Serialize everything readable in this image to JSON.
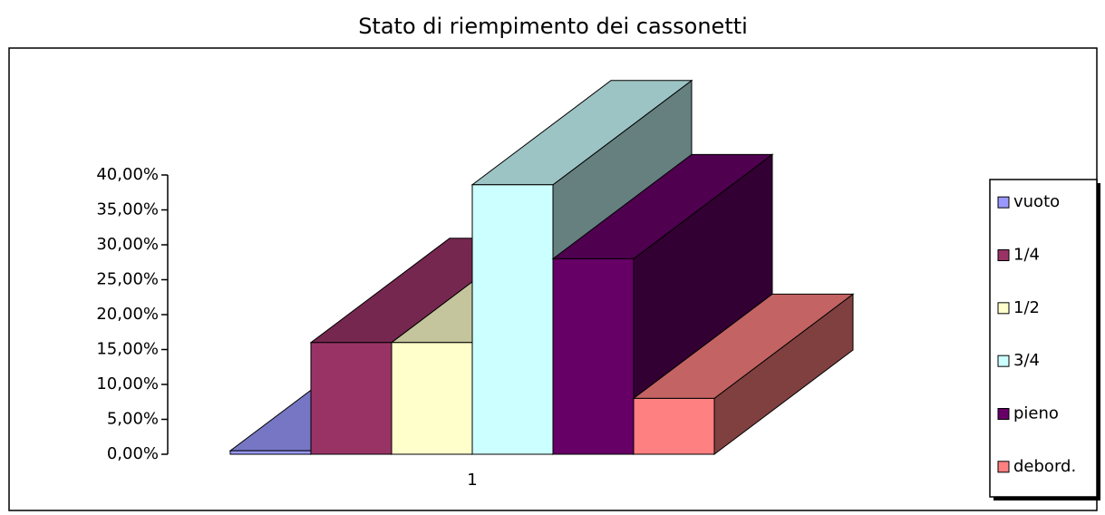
{
  "chart_data": {
    "type": "bar3d",
    "title": "Stato di riempimento dei cassonetti",
    "categories": [
      "1"
    ],
    "series": [
      {
        "name": "vuoto",
        "color": "#9999ff",
        "values": [
          0.5
        ]
      },
      {
        "name": "1/4",
        "color": "#993366",
        "values": [
          16
        ]
      },
      {
        "name": "1/2",
        "color": "#ffffcc",
        "values": [
          16
        ]
      },
      {
        "name": "3/4",
        "color": "#ccffff",
        "values": [
          38.6
        ]
      },
      {
        "name": "pieno",
        "color": "#660066",
        "values": [
          28
        ]
      },
      {
        "name": "debord.",
        "color": "#ff8080",
        "values": [
          8
        ]
      }
    ],
    "ylim": [
      0,
      40
    ],
    "yticks": [
      {
        "value": 0,
        "label": "0,00%"
      },
      {
        "value": 5,
        "label": "5,00%"
      },
      {
        "value": 10,
        "label": "10,00%"
      },
      {
        "value": 15,
        "label": "15,00%"
      },
      {
        "value": 20,
        "label": "20,00%"
      },
      {
        "value": 25,
        "label": "25,00%"
      },
      {
        "value": 30,
        "label": "30,00%"
      },
      {
        "value": 35,
        "label": "35,00%"
      },
      {
        "value": 40,
        "label": "40,00%"
      }
    ],
    "legend": "right"
  }
}
